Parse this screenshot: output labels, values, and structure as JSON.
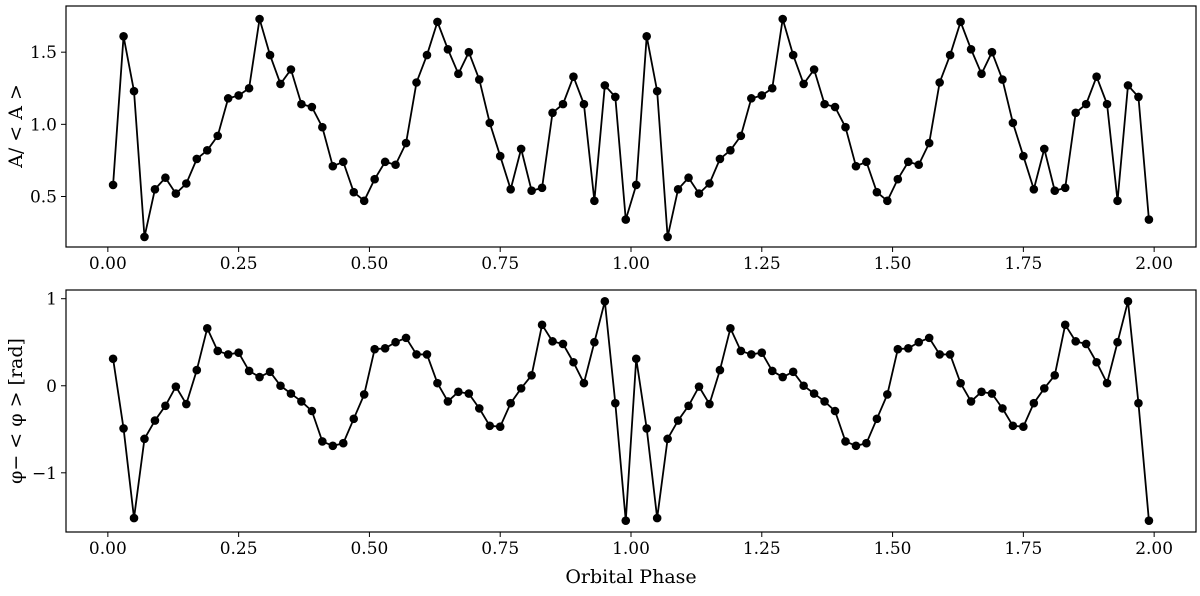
{
  "chart_data": [
    {
      "type": "line",
      "title": "",
      "xlabel": "",
      "ylabel": "A/ < A >",
      "xlim": [
        -0.08,
        2.08
      ],
      "ylim": [
        0.15,
        1.82
      ],
      "xticks": [
        0,
        0.25,
        0.5,
        0.75,
        1.0,
        1.25,
        1.5,
        1.75,
        2.0
      ],
      "xtick_labels": [
        "0.00",
        "0.25",
        "0.50",
        "0.75",
        "1.00",
        "1.25",
        "1.50",
        "1.75",
        "2.00"
      ],
      "yticks": [
        0.5,
        1.0,
        1.5
      ],
      "ytick_labels": [
        "0.5",
        "1.0",
        "1.5"
      ],
      "grid": false,
      "marker_color": "#000000",
      "series": [
        {
          "x": [
            0.01,
            0.03,
            0.05,
            0.07,
            0.09,
            0.11,
            0.13,
            0.15,
            0.17,
            0.19,
            0.21,
            0.23,
            0.25,
            0.27,
            0.29,
            0.31,
            0.33,
            0.35,
            0.37,
            0.39,
            0.41,
            0.43,
            0.45,
            0.47,
            0.49,
            0.51,
            0.53,
            0.55,
            0.57,
            0.59,
            0.61,
            0.63,
            0.65,
            0.67,
            0.69,
            0.71,
            0.73,
            0.75,
            0.77,
            0.79,
            0.81,
            0.83,
            0.85,
            0.87,
            0.89,
            0.91,
            0.93,
            0.95,
            0.97,
            0.99,
            1.01,
            1.03,
            1.05,
            1.07,
            1.09,
            1.11,
            1.13,
            1.15,
            1.17,
            1.19,
            1.21,
            1.23,
            1.25,
            1.27,
            1.29,
            1.31,
            1.33,
            1.35,
            1.37,
            1.39,
            1.41,
            1.43,
            1.45,
            1.47,
            1.49,
            1.51,
            1.53,
            1.55,
            1.57,
            1.59,
            1.61,
            1.63,
            1.65,
            1.67,
            1.69,
            1.71,
            1.73,
            1.75,
            1.77,
            1.79,
            1.81,
            1.83,
            1.85,
            1.87,
            1.89,
            1.91,
            1.93,
            1.95,
            1.97,
            1.99
          ],
          "y": [
            0.58,
            1.61,
            1.23,
            0.22,
            0.55,
            0.63,
            0.52,
            0.59,
            0.76,
            0.82,
            0.92,
            1.18,
            1.2,
            1.25,
            1.73,
            1.48,
            1.28,
            1.38,
            1.14,
            1.12,
            0.98,
            0.71,
            0.74,
            0.53,
            0.47,
            0.62,
            0.74,
            0.72,
            0.87,
            1.29,
            1.48,
            1.71,
            1.52,
            1.35,
            1.5,
            1.31,
            1.01,
            0.78,
            0.55,
            0.83,
            0.54,
            0.56,
            1.08,
            1.14,
            1.33,
            1.14,
            0.47,
            1.27,
            1.19,
            0.34,
            0.58,
            1.61,
            1.23,
            0.22,
            0.55,
            0.63,
            0.52,
            0.59,
            0.76,
            0.82,
            0.92,
            1.18,
            1.2,
            1.25,
            1.73,
            1.48,
            1.28,
            1.38,
            1.14,
            1.12,
            0.98,
            0.71,
            0.74,
            0.53,
            0.47,
            0.62,
            0.74,
            0.72,
            0.87,
            1.29,
            1.48,
            1.71,
            1.52,
            1.35,
            1.5,
            1.31,
            1.01,
            0.78,
            0.55,
            0.83,
            0.54,
            0.56,
            1.08,
            1.14,
            1.33,
            1.14,
            0.47,
            1.27,
            1.19,
            0.34
          ]
        }
      ]
    },
    {
      "type": "line",
      "title": "",
      "xlabel": "Orbital Phase",
      "ylabel": "φ− < φ > [rad]",
      "xlim": [
        -0.08,
        2.08
      ],
      "ylim": [
        -1.68,
        1.1
      ],
      "xticks": [
        0,
        0.25,
        0.5,
        0.75,
        1.0,
        1.25,
        1.5,
        1.75,
        2.0
      ],
      "xtick_labels": [
        "0.00",
        "0.25",
        "0.50",
        "0.75",
        "1.00",
        "1.25",
        "1.50",
        "1.75",
        "2.00"
      ],
      "yticks": [
        -1,
        0,
        1
      ],
      "ytick_labels": [
        "−1",
        "0",
        "1"
      ],
      "grid": false,
      "marker_color": "#000000",
      "series": [
        {
          "x": [
            0.01,
            0.03,
            0.05,
            0.07,
            0.09,
            0.11,
            0.13,
            0.15,
            0.17,
            0.19,
            0.21,
            0.23,
            0.25,
            0.27,
            0.29,
            0.31,
            0.33,
            0.35,
            0.37,
            0.39,
            0.41,
            0.43,
            0.45,
            0.47,
            0.49,
            0.51,
            0.53,
            0.55,
            0.57,
            0.59,
            0.61,
            0.63,
            0.65,
            0.67,
            0.69,
            0.71,
            0.73,
            0.75,
            0.77,
            0.79,
            0.81,
            0.83,
            0.85,
            0.87,
            0.89,
            0.91,
            0.93,
            0.95,
            0.97,
            0.99,
            1.01,
            1.03,
            1.05,
            1.07,
            1.09,
            1.11,
            1.13,
            1.15,
            1.17,
            1.19,
            1.21,
            1.23,
            1.25,
            1.27,
            1.29,
            1.31,
            1.33,
            1.35,
            1.37,
            1.39,
            1.41,
            1.43,
            1.45,
            1.47,
            1.49,
            1.51,
            1.53,
            1.55,
            1.57,
            1.59,
            1.61,
            1.63,
            1.65,
            1.67,
            1.69,
            1.71,
            1.73,
            1.75,
            1.77,
            1.79,
            1.81,
            1.83,
            1.85,
            1.87,
            1.89,
            1.91,
            1.93,
            1.95,
            1.97,
            1.99
          ],
          "y": [
            0.31,
            -0.49,
            -1.52,
            -0.61,
            -0.4,
            -0.23,
            -0.01,
            -0.21,
            0.18,
            0.66,
            0.4,
            0.36,
            0.38,
            0.17,
            0.1,
            0.16,
            0.0,
            -0.09,
            -0.18,
            -0.29,
            -0.64,
            -0.69,
            -0.66,
            -0.38,
            -0.1,
            0.42,
            0.43,
            0.5,
            0.55,
            0.36,
            0.36,
            0.03,
            -0.18,
            -0.07,
            -0.09,
            -0.26,
            -0.46,
            -0.47,
            -0.2,
            -0.03,
            0.12,
            0.7,
            0.51,
            0.48,
            0.27,
            0.03,
            0.5,
            0.97,
            -0.2,
            -1.55,
            0.31,
            -0.49,
            -1.52,
            -0.61,
            -0.4,
            -0.23,
            -0.01,
            -0.21,
            0.18,
            0.66,
            0.4,
            0.36,
            0.38,
            0.17,
            0.1,
            0.16,
            0.0,
            -0.09,
            -0.18,
            -0.29,
            -0.64,
            -0.69,
            -0.66,
            -0.38,
            -0.1,
            0.42,
            0.43,
            0.5,
            0.55,
            0.36,
            0.36,
            0.03,
            -0.18,
            -0.07,
            -0.09,
            -0.26,
            -0.46,
            -0.47,
            -0.2,
            -0.03,
            0.12,
            0.7,
            0.51,
            0.48,
            0.27,
            0.03,
            0.5,
            0.97,
            -0.2,
            -1.55
          ]
        }
      ]
    }
  ]
}
